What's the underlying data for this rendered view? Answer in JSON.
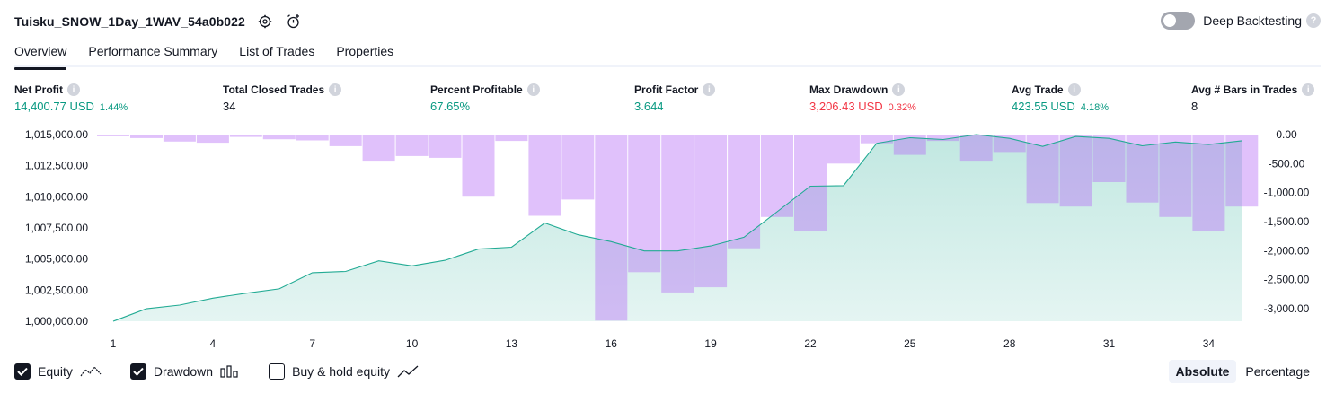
{
  "header": {
    "strategy_title": "Tuisku_SNOW_1Day_1WAV_54a0b022",
    "deep_backtesting_label": "Deep Backtesting",
    "help_glyph": "?",
    "icons": [
      "settings-icon",
      "add-alert-icon"
    ]
  },
  "tabs": [
    {
      "label": "Overview",
      "active": true
    },
    {
      "label": "Performance Summary",
      "active": false
    },
    {
      "label": "List of Trades",
      "active": false
    },
    {
      "label": "Properties",
      "active": false
    }
  ],
  "stats": {
    "net_profit": {
      "label": "Net Profit",
      "value": "14,400.77 USD",
      "pct": "1.44%"
    },
    "total_closed_trades": {
      "label": "Total Closed Trades",
      "value": "34"
    },
    "percent_profitable": {
      "label": "Percent Profitable",
      "value": "67.65%"
    },
    "profit_factor": {
      "label": "Profit Factor",
      "value": "3.644"
    },
    "max_drawdown": {
      "label": "Max Drawdown",
      "value": "3,206.43 USD",
      "pct": "0.32%"
    },
    "avg_trade": {
      "label": "Avg Trade",
      "value": "423.55 USD",
      "pct": "4.18%"
    },
    "avg_bars": {
      "label": "Avg # Bars in Trades",
      "value": "8"
    }
  },
  "chart_data": {
    "type": "line",
    "series": [
      {
        "name": "Equity",
        "type": "area",
        "x": [
          1,
          2,
          3,
          4,
          5,
          6,
          7,
          8,
          9,
          10,
          11,
          12,
          13,
          14,
          15,
          16,
          17,
          18,
          19,
          20,
          21,
          22,
          23,
          24,
          25,
          26,
          27,
          28,
          29,
          30,
          31,
          32,
          33,
          34,
          35
        ],
        "values": [
          1000000,
          1001000,
          1001300,
          1001850,
          1002250,
          1002600,
          1003900,
          1004000,
          1004850,
          1004450,
          1004900,
          1005800,
          1005950,
          1007900,
          1006950,
          1006400,
          1005650,
          1005650,
          1006050,
          1006750,
          1008800,
          1010850,
          1010900,
          1014300,
          1014750,
          1014600,
          1015000,
          1014700,
          1014050,
          1014850,
          1014700,
          1014100,
          1014400,
          1014200,
          1014500
        ]
      },
      {
        "name": "Drawdown",
        "type": "bar",
        "x": [
          1,
          2,
          3,
          4,
          5,
          6,
          7,
          8,
          9,
          10,
          11,
          12,
          13,
          14,
          15,
          16,
          17,
          18,
          19,
          20,
          21,
          22,
          23,
          24,
          25,
          26,
          27,
          28,
          29,
          30,
          31,
          32,
          33,
          34,
          35
        ],
        "values": [
          -30,
          -60,
          -120,
          -140,
          -40,
          -80,
          -100,
          -200,
          -450,
          -370,
          -400,
          -1070,
          -110,
          -1400,
          -1120,
          -3206.43,
          -2370,
          -2720,
          -2630,
          -1960,
          -1420,
          -1670,
          -500,
          -150,
          -350,
          -110,
          -450,
          -300,
          -1180,
          -1240,
          -820,
          -1170,
          -1420,
          -1660,
          -1240
        ]
      }
    ],
    "x_ticks": [
      1,
      4,
      7,
      10,
      13,
      16,
      19,
      22,
      25,
      28,
      31,
      34
    ],
    "left_ticks": [
      "1,000,000.00",
      "1,002,500.00",
      "1,005,000.00",
      "1,007,500.00",
      "1,010,000.00",
      "1,012,500.00",
      "1,015,000.00"
    ],
    "left_tick_values": [
      1000000,
      1002500,
      1005000,
      1007500,
      1010000,
      1012500,
      1015000
    ],
    "right_ticks": [
      "0.00",
      "-500.00",
      "-1,000.00",
      "-1,500.00",
      "-2,000.00",
      "-2,500.00",
      "-3,000.00"
    ],
    "right_tick_values": [
      0,
      -500,
      -1000,
      -1500,
      -2000,
      -2500,
      -3000
    ],
    "ylim_left": [
      1000000,
      1015000
    ],
    "ylim_right": [
      -3250,
      0
    ],
    "colors": {
      "equity_line": "#22ab94",
      "equity_fill": "#22ab94",
      "drawdown": "#b46cf5"
    }
  },
  "legend": [
    {
      "label": "Equity",
      "checked": true,
      "icon": "equity-line-icon"
    },
    {
      "label": "Drawdown",
      "checked": true,
      "icon": "drawdown-bars-icon"
    },
    {
      "label": "Buy & hold equity",
      "checked": false,
      "icon": "buy-hold-line-icon"
    }
  ],
  "mode": {
    "absolute": "Absolute",
    "percentage": "Percentage"
  }
}
